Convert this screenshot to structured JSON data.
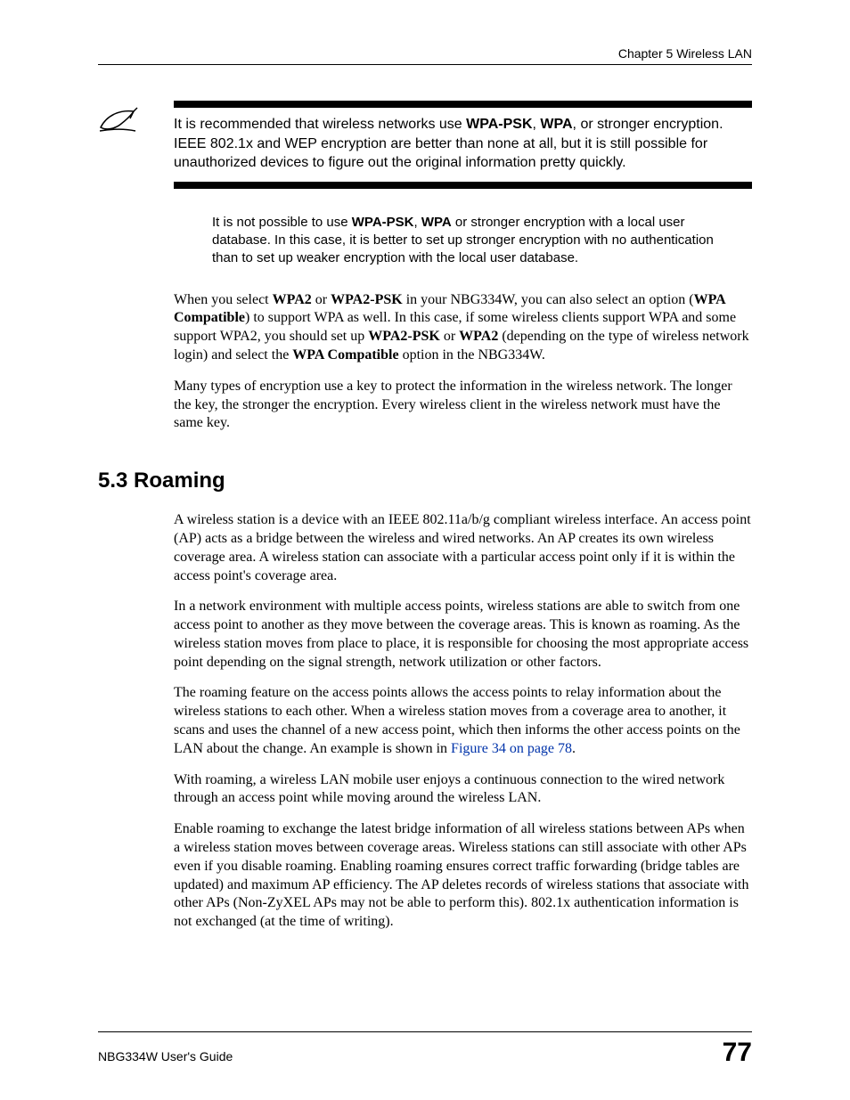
{
  "header": {
    "chapter": "Chapter 5 Wireless LAN"
  },
  "note": {
    "text_parts": [
      {
        "t": "It is recommended that wireless networks use ",
        "b": false
      },
      {
        "t": "WPA-PSK",
        "b": true
      },
      {
        "t": ", ",
        "b": false
      },
      {
        "t": "WPA",
        "b": true
      },
      {
        "t": ", or stronger encryption. IEEE 802.1x and WEP encryption are better than none at all, but it is still possible for unauthorized devices to figure out the original information pretty quickly.",
        "b": false
      }
    ]
  },
  "sub_note": {
    "parts": [
      {
        "t": "It is not possible to use ",
        "b": false
      },
      {
        "t": "WPA-PSK",
        "b": true
      },
      {
        "t": ", ",
        "b": false
      },
      {
        "t": "WPA",
        "b": true
      },
      {
        "t": " or stronger encryption with a local user database. In this case, it is better to set up stronger encryption with no authentication than to set up weaker encryption with the local user database.",
        "b": false
      }
    ]
  },
  "paras": [
    {
      "parts": [
        {
          "t": "When you select ",
          "b": false
        },
        {
          "t": "WPA2",
          "b": true
        },
        {
          "t": " or ",
          "b": false
        },
        {
          "t": "WPA2-PSK",
          "b": true
        },
        {
          "t": " in your NBG334W, you can also select an option (",
          "b": false
        },
        {
          "t": "WPA Compatible",
          "b": true
        },
        {
          "t": ") to support WPA as well. In this case, if some wireless clients support WPA and some support WPA2, you should set up ",
          "b": false
        },
        {
          "t": "WPA2-PSK",
          "b": true
        },
        {
          "t": " or ",
          "b": false
        },
        {
          "t": "WPA2",
          "b": true
        },
        {
          "t": " (depending on the type of wireless network login) and select the ",
          "b": false
        },
        {
          "t": "WPA Compatible",
          "b": true
        },
        {
          "t": " option in the NBG334W.",
          "b": false
        }
      ]
    },
    {
      "parts": [
        {
          "t": "Many types of encryption use a key to protect the information in the wireless network. The longer the key, the stronger the encryption. Every wireless client in the wireless network must have the same key.",
          "b": false
        }
      ]
    }
  ],
  "section": {
    "heading": "5.3  Roaming",
    "paras": [
      {
        "parts": [
          {
            "t": "A wireless station is a device with an IEEE 802.11a/b/g compliant wireless interface. An access point (AP) acts as a bridge between the wireless and wired networks. An AP creates its own wireless coverage area. A wireless station can associate with a particular access point only if it is within the access point's coverage area.",
            "b": false
          }
        ]
      },
      {
        "parts": [
          {
            "t": "In a network environment with multiple access points, wireless stations are able to switch from one access point to another as they move between the coverage areas. This is known as roaming. As the wireless station moves from place to place, it is responsible for choosing the most appropriate access point depending on the signal strength, network utilization or other factors.",
            "b": false
          }
        ]
      },
      {
        "parts": [
          {
            "t": "The roaming feature on the access points allows the access points to relay information about the wireless stations to each other. When a wireless station moves from a coverage area to another, it scans and uses the channel of a new access point, which then informs the other access points on the LAN about the change. An example is shown in ",
            "b": false
          },
          {
            "t": "Figure 34 on page 78",
            "link": true
          },
          {
            "t": ".",
            "b": false
          }
        ]
      },
      {
        "parts": [
          {
            "t": "With roaming, a wireless LAN mobile user enjoys a continuous connection to the wired network through an access point while moving around the wireless LAN.",
            "b": false
          }
        ]
      },
      {
        "parts": [
          {
            "t": "Enable roaming to exchange the latest bridge information of all wireless stations between APs when a wireless station moves between coverage areas. Wireless stations can still associate with other APs even if you disable roaming. Enabling roaming ensures correct traffic forwarding (bridge tables are updated) and maximum AP efficiency. The AP deletes records of wireless stations that associate with other APs (Non-ZyXEL APs may not be able to perform this). 802.1x authentication information is not exchanged (at the time of writing).",
            "b": false
          }
        ]
      }
    ]
  },
  "footer": {
    "guide": "NBG334W User's Guide",
    "page": "77"
  }
}
